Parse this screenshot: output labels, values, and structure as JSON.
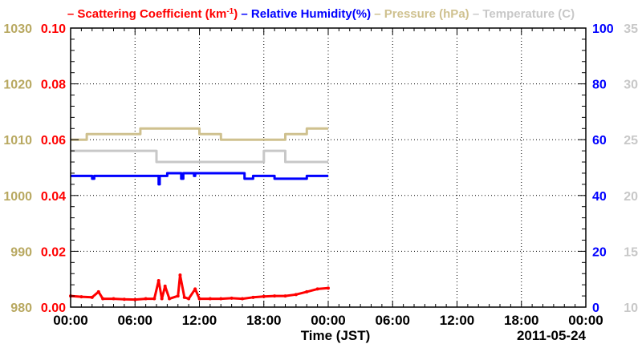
{
  "chart_data": {
    "type": "line",
    "legend": {
      "placement": "top",
      "items": [
        {
          "prefix": "– ",
          "text": "Scattering Coefficient (km",
          "sup": "-1",
          "suffix": ")",
          "color": "#ff0000"
        },
        {
          "prefix": "– ",
          "text": "Relative Humidity(%)",
          "color": "#0000ff"
        },
        {
          "prefix": "– ",
          "text": "Pressure (hPa)",
          "color": "#cfc18f"
        },
        {
          "prefix": "– ",
          "text": "Temperature (",
          "suffix": "C)",
          "color": "#c8c8c8"
        }
      ]
    },
    "xlabel": "Time (JST)",
    "date_label": "2011-05-24",
    "x_ticks": [
      "00:00",
      "06:00",
      "12:00",
      "18:00",
      "00:00",
      "06:00",
      "12:00",
      "18:00",
      "00:00"
    ],
    "x_range_hours": [
      0,
      48
    ],
    "grid": true,
    "axes": {
      "pressure": {
        "side": "left-outer",
        "ticks": [
          "980",
          "990",
          "1000",
          "1010",
          "1020",
          "1030"
        ],
        "range": [
          980,
          1030
        ],
        "color": "#b8a860"
      },
      "scattering": {
        "side": "left-inner",
        "ticks": [
          "0.00",
          "0.02",
          "0.04",
          "0.06",
          "0.08",
          "0.10"
        ],
        "range": [
          0,
          0.1
        ],
        "color": "#ff0000"
      },
      "humidity": {
        "side": "right-inner",
        "ticks": [
          "0",
          "20",
          "40",
          "60",
          "80",
          "100"
        ],
        "range": [
          0,
          100
        ],
        "color": "#0000ff"
      },
      "temperature": {
        "side": "right-outer",
        "ticks": [
          "10",
          "15",
          "20",
          "25",
          "30",
          "35"
        ],
        "range": [
          10,
          35
        ],
        "color": "#c8c8c8"
      }
    },
    "series": [
      {
        "name": "Pressure (hPa)",
        "axis": "pressure",
        "color": "#cfc18f",
        "x": [
          0,
          0.5,
          1.5,
          6,
          6.5,
          8,
          10,
          11,
          12,
          12.5,
          13,
          14,
          14.5,
          16,
          16.3,
          18,
          20,
          22,
          24
        ],
        "y": [
          1010,
          1010,
          1011,
          1011,
          1012,
          1012,
          1012,
          1012,
          1011,
          1011,
          1011,
          1010,
          1010,
          1010,
          1010,
          1010,
          1011,
          1012,
          1012
        ]
      },
      {
        "name": "Temperature (C)",
        "axis": "temperature",
        "color": "#c8c8c8",
        "x": [
          0,
          6.5,
          8,
          12,
          14,
          16,
          18,
          20,
          22,
          24
        ],
        "y": [
          24,
          24,
          23,
          23,
          23,
          23,
          24,
          23,
          23,
          23
        ]
      },
      {
        "name": "Relative Humidity(%)",
        "axis": "humidity",
        "color": "#0000ff",
        "x": [
          0,
          1.8,
          2,
          2.2,
          6.5,
          7,
          8,
          8.2,
          8.3,
          9,
          10,
          10.3,
          10.5,
          11,
          11.5,
          11.6,
          12,
          14,
          16,
          16.2,
          17,
          18,
          19,
          20,
          22,
          24
        ],
        "y": [
          47,
          47,
          46,
          47,
          47,
          47,
          47,
          44,
          47,
          48,
          48,
          46,
          48,
          48,
          47,
          48,
          48,
          48,
          48,
          46,
          47,
          47,
          46,
          46,
          47,
          47
        ]
      },
      {
        "name": "Scattering Coefficient (km-1)",
        "axis": "scattering",
        "color": "#ff0000",
        "x": [
          0,
          1,
          2,
          2.6,
          3,
          4,
          5,
          6,
          7,
          7.8,
          8.2,
          8.5,
          8.8,
          9.2,
          10,
          10.2,
          10.6,
          11,
          11.6,
          12,
          13,
          14,
          15,
          16,
          17,
          18,
          19,
          20,
          21,
          22,
          23,
          24
        ],
        "y": [
          0.004,
          0.0037,
          0.0035,
          0.0055,
          0.003,
          0.003,
          0.0028,
          0.0027,
          0.003,
          0.003,
          0.0095,
          0.003,
          0.0075,
          0.003,
          0.004,
          0.0115,
          0.0035,
          0.003,
          0.0065,
          0.003,
          0.003,
          0.003,
          0.0032,
          0.003,
          0.0035,
          0.0038,
          0.004,
          0.004,
          0.0045,
          0.0055,
          0.0065,
          0.0068
        ]
      }
    ]
  }
}
